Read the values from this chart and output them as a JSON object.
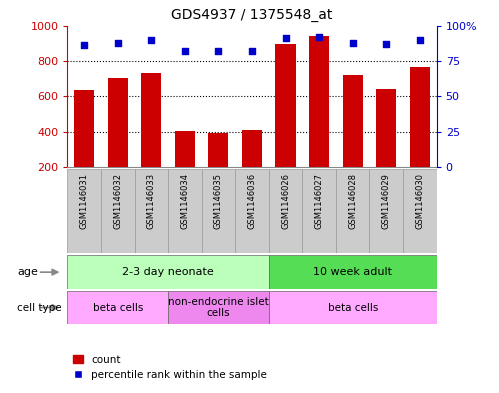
{
  "title": "GDS4937 / 1375548_at",
  "samples": [
    "GSM1146031",
    "GSM1146032",
    "GSM1146033",
    "GSM1146034",
    "GSM1146035",
    "GSM1146036",
    "GSM1146026",
    "GSM1146027",
    "GSM1146028",
    "GSM1146029",
    "GSM1146030"
  ],
  "counts": [
    635,
    705,
    730,
    405,
    395,
    410,
    895,
    940,
    720,
    640,
    765
  ],
  "percentiles": [
    86,
    88,
    90,
    82,
    82,
    82,
    91,
    92,
    88,
    87,
    90
  ],
  "ylim_left": [
    200,
    1000
  ],
  "ylim_right": [
    0,
    100
  ],
  "yticks_left": [
    200,
    400,
    600,
    800,
    1000
  ],
  "yticks_right": [
    0,
    25,
    50,
    75,
    100
  ],
  "ytick_labels_right": [
    "0",
    "25",
    "50",
    "75",
    "100%"
  ],
  "bar_color": "#cc0000",
  "dot_color": "#0000cc",
  "age_groups": [
    {
      "label": "2-3 day neonate",
      "start": 0,
      "end": 6,
      "color": "#bbffbb"
    },
    {
      "label": "10 week adult",
      "start": 6,
      "end": 11,
      "color": "#55dd55"
    }
  ],
  "cell_type_groups": [
    {
      "label": "beta cells",
      "start": 0,
      "end": 3,
      "color": "#ffaaff"
    },
    {
      "label": "non-endocrine islet\ncells",
      "start": 3,
      "end": 6,
      "color": "#ee88ee"
    },
    {
      "label": "beta cells",
      "start": 6,
      "end": 11,
      "color": "#ffaaff"
    }
  ],
  "left_axis_color": "#cc0000",
  "right_axis_color": "#0000cc",
  "label_box_color": "#cccccc",
  "label_box_edge": "#999999"
}
